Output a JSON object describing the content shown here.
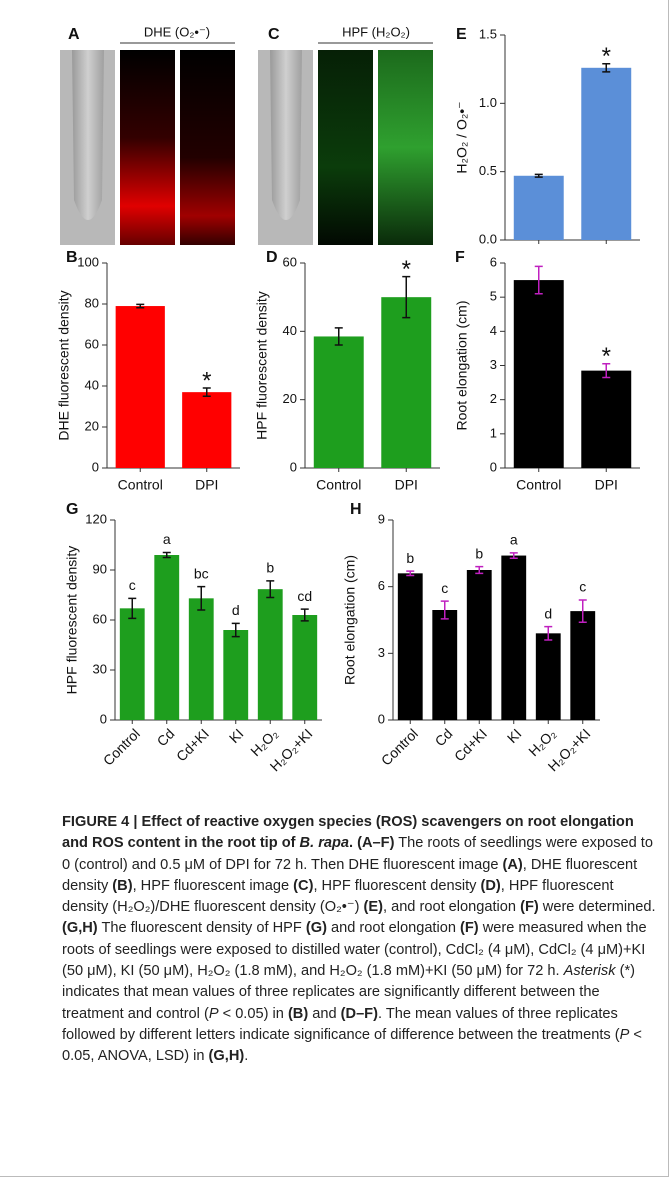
{
  "image_panels": [
    {
      "label": "A",
      "title": "DHE (O₂•⁻)"
    },
    {
      "label": "C",
      "title": "HPF (H₂O₂)"
    }
  ],
  "chart_data": [
    {
      "type": "bar",
      "label": "E",
      "ylabel": "H₂O₂ / O₂•⁻",
      "color": "#5b8fd8",
      "error_color": "#111",
      "values": [
        0.47,
        1.26
      ],
      "errors": [
        0.01,
        0.03
      ],
      "annotations": [
        null,
        "*"
      ],
      "ylim": [
        0,
        1.5
      ],
      "yticks": [
        {
          "value": 0,
          "label": "0.0"
        },
        0.5,
        {
          "value": 1,
          "label": "1.0"
        },
        1.5
      ]
    },
    {
      "type": "bar",
      "label": "B",
      "ylabel": "DHE fluorescent density",
      "color": "#ff0000",
      "error_color": "#111",
      "categories": [
        "Control",
        "DPI"
      ],
      "values": [
        79,
        37
      ],
      "errors": [
        0.8,
        2
      ],
      "annotations": [
        null,
        "*"
      ],
      "ylim": [
        0,
        100
      ],
      "yticks": [
        0,
        20,
        40,
        60,
        80,
        100
      ]
    },
    {
      "type": "bar",
      "label": "D",
      "ylabel": "HPF fluorescent density",
      "color": "#1e9e1e",
      "error_color": "#111",
      "categories": [
        "Control",
        "DPI"
      ],
      "values": [
        38.5,
        50
      ],
      "errors": [
        2.5,
        6
      ],
      "annotations": [
        null,
        "*"
      ],
      "ylim": [
        0,
        60
      ],
      "yticks": [
        0,
        20,
        40,
        60
      ]
    },
    {
      "type": "bar",
      "label": "F",
      "ylabel": "Root elongation (cm)",
      "color": "#000000",
      "error_color": "#c020c0",
      "categories": [
        "Control",
        "DPI"
      ],
      "values": [
        5.5,
        2.85
      ],
      "errors": [
        0.4,
        0.2
      ],
      "annotations": [
        null,
        "*"
      ],
      "ylim": [
        0,
        6
      ],
      "yticks": [
        0,
        1,
        2,
        3,
        4,
        5,
        6
      ]
    },
    {
      "type": "bar",
      "label": "G",
      "ylabel": "HPF fluorescent density",
      "color": "#1e9e1e",
      "error_color": "#111",
      "categories": [
        "Control",
        "Cd",
        "Cd+KI",
        "KI",
        "H₂O₂",
        "H₂O₂+KI"
      ],
      "values": [
        67,
        99,
        73,
        54,
        78.5,
        63
      ],
      "errors": [
        6,
        1.5,
        7,
        4,
        5,
        3.5
      ],
      "annotations": [
        "c",
        "a",
        "bc",
        "d",
        "b",
        "cd"
      ],
      "ylim": [
        0,
        120
      ],
      "yticks": [
        0,
        30,
        60,
        90,
        120
      ]
    },
    {
      "type": "bar",
      "label": "H",
      "ylabel": "Root elongation (cm)",
      "color": "#000000",
      "error_color": "#c020c0",
      "categories": [
        "Control",
        "Cd",
        "Cd+KI",
        "KI",
        "H₂O₂",
        "H₂O₂+KI"
      ],
      "values": [
        6.6,
        4.95,
        6.75,
        7.4,
        3.9,
        4.9
      ],
      "errors": [
        0.1,
        0.4,
        0.15,
        0.12,
        0.3,
        0.5
      ],
      "annotations": [
        "b",
        "c",
        "b",
        "a",
        "d",
        "c"
      ],
      "ylim": [
        0,
        9
      ],
      "yticks": [
        0,
        3,
        6,
        9
      ]
    }
  ],
  "caption": [
    {
      "text": "FIGURE 4 | Effect of reactive oxygen species (ROS) scavengers on root elongation and ROS content in the root tip of ",
      "style": "bold"
    },
    {
      "text": "B. rapa",
      "style": "bold-italic"
    },
    {
      "text": ". (A–F)",
      "style": "bold"
    },
    {
      "text": " The roots of seedlings were exposed to 0 (control) and 0.5 μM of DPI for 72 h. Then DHE fluorescent image "
    },
    {
      "text": "(A)",
      "style": "bold"
    },
    {
      "text": ", DHE fluorescent density "
    },
    {
      "text": "(B)",
      "style": "bold"
    },
    {
      "text": ", HPF fluorescent image "
    },
    {
      "text": "(C)",
      "style": "bold"
    },
    {
      "text": ", HPF fluorescent density "
    },
    {
      "text": "(D)",
      "style": "bold"
    },
    {
      "text": ", HPF fluorescent density (H₂O₂)/DHE fluorescent density (O₂•⁻) "
    },
    {
      "text": "(E)",
      "style": "bold"
    },
    {
      "text": ", and root elongation "
    },
    {
      "text": "(F)",
      "style": "bold"
    },
    {
      "text": " were determined. "
    },
    {
      "text": "(G,H)",
      "style": "bold"
    },
    {
      "text": " The fluorescent density of HPF "
    },
    {
      "text": "(G)",
      "style": "bold"
    },
    {
      "text": " and root elongation "
    },
    {
      "text": "(F)",
      "style": "bold"
    },
    {
      "text": " were measured when the roots of seedlings were exposed to distilled water (control), CdCl₂ (4 μM), CdCl₂ (4 μM)+KI (50 μM), KI (50 μM), H₂O₂ (1.8 mM), and H₂O₂ (1.8 mM)+KI (50 μM) for 72 h. "
    },
    {
      "text": "Asterisk",
      "style": "italic"
    },
    {
      "text": " (*) indicates that mean values of three replicates are significantly different between the treatment and control ("
    },
    {
      "text": "P",
      "style": "italic"
    },
    {
      "text": " < 0.05) in "
    },
    {
      "text": "(B)",
      "style": "bold"
    },
    {
      "text": " and "
    },
    {
      "text": "(D–F)",
      "style": "bold"
    },
    {
      "text": ". The mean values of three replicates followed by different letters indicate significance of difference between the treatments ("
    },
    {
      "text": "P",
      "style": "italic"
    },
    {
      "text": " < 0.05, ANOVA, LSD) in "
    },
    {
      "text": "(G,H)",
      "style": "bold"
    },
    {
      "text": "."
    }
  ]
}
